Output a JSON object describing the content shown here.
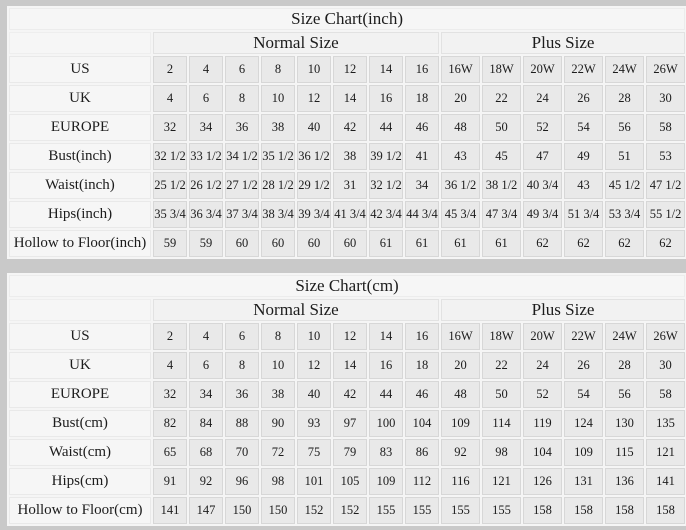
{
  "page": {
    "background": "#c9c9c9"
  },
  "colors": {
    "table_background": "#f5f5f5",
    "value_cell_background": "#e9e9e9",
    "label_cell_background": "#f6f6f6",
    "cell_border": "#d7d7d7",
    "text": "#1c1c1c"
  },
  "chart_data": [
    {
      "type": "table",
      "title": "Size Chart(inch)",
      "column_groups": [
        {
          "label": "Normal Size",
          "span": 8
        },
        {
          "label": "Plus Size",
          "span": 6
        }
      ],
      "rows": [
        {
          "label": "US",
          "values": [
            "2",
            "4",
            "6",
            "8",
            "10",
            "12",
            "14",
            "16",
            "16W",
            "18W",
            "20W",
            "22W",
            "24W",
            "26W"
          ]
        },
        {
          "label": "UK",
          "values": [
            "4",
            "6",
            "8",
            "10",
            "12",
            "14",
            "16",
            "18",
            "20",
            "22",
            "24",
            "26",
            "28",
            "30"
          ]
        },
        {
          "label": "EUROPE",
          "values": [
            "32",
            "34",
            "36",
            "38",
            "40",
            "42",
            "44",
            "46",
            "48",
            "50",
            "52",
            "54",
            "56",
            "58"
          ]
        },
        {
          "label": "Bust(inch)",
          "values": [
            "32 1/2",
            "33 1/2",
            "34 1/2",
            "35 1/2",
            "36 1/2",
            "38",
            "39 1/2",
            "41",
            "43",
            "45",
            "47",
            "49",
            "51",
            "53"
          ]
        },
        {
          "label": "Waist(inch)",
          "values": [
            "25 1/2",
            "26 1/2",
            "27 1/2",
            "28 1/2",
            "29 1/2",
            "31",
            "32 1/2",
            "34",
            "36 1/2",
            "38 1/2",
            "40 3/4",
            "43",
            "45 1/2",
            "47 1/2"
          ]
        },
        {
          "label": "Hips(inch)",
          "values": [
            "35 3/4",
            "36 3/4",
            "37 3/4",
            "38 3/4",
            "39 3/4",
            "41 3/4",
            "42 3/4",
            "44 3/4",
            "45 3/4",
            "47 3/4",
            "49 3/4",
            "51 3/4",
            "53 3/4",
            "55 1/2"
          ]
        },
        {
          "label": "Hollow to Floor(inch)",
          "values": [
            "59",
            "59",
            "60",
            "60",
            "60",
            "60",
            "61",
            "61",
            "61",
            "61",
            "62",
            "62",
            "62",
            "62"
          ]
        }
      ]
    },
    {
      "type": "table",
      "title": "Size Chart(cm)",
      "column_groups": [
        {
          "label": "Normal Size",
          "span": 8
        },
        {
          "label": "Plus Size",
          "span": 6
        }
      ],
      "rows": [
        {
          "label": "US",
          "values": [
            "2",
            "4",
            "6",
            "8",
            "10",
            "12",
            "14",
            "16",
            "16W",
            "18W",
            "20W",
            "22W",
            "24W",
            "26W"
          ]
        },
        {
          "label": "UK",
          "values": [
            "4",
            "6",
            "8",
            "10",
            "12",
            "14",
            "16",
            "18",
            "20",
            "22",
            "24",
            "26",
            "28",
            "30"
          ]
        },
        {
          "label": "EUROPE",
          "values": [
            "32",
            "34",
            "36",
            "38",
            "40",
            "42",
            "44",
            "46",
            "48",
            "50",
            "52",
            "54",
            "56",
            "58"
          ]
        },
        {
          "label": "Bust(cm)",
          "values": [
            "82",
            "84",
            "88",
            "90",
            "93",
            "97",
            "100",
            "104",
            "109",
            "114",
            "119",
            "124",
            "130",
            "135"
          ]
        },
        {
          "label": "Waist(cm)",
          "values": [
            "65",
            "68",
            "70",
            "72",
            "75",
            "79",
            "83",
            "86",
            "92",
            "98",
            "104",
            "109",
            "115",
            "121"
          ]
        },
        {
          "label": "Hips(cm)",
          "values": [
            "91",
            "92",
            "96",
            "98",
            "101",
            "105",
            "109",
            "112",
            "116",
            "121",
            "126",
            "131",
            "136",
            "141"
          ]
        },
        {
          "label": "Hollow to Floor(cm)",
          "values": [
            "141",
            "147",
            "150",
            "150",
            "152",
            "152",
            "155",
            "155",
            "155",
            "155",
            "158",
            "158",
            "158",
            "158"
          ]
        }
      ]
    }
  ]
}
